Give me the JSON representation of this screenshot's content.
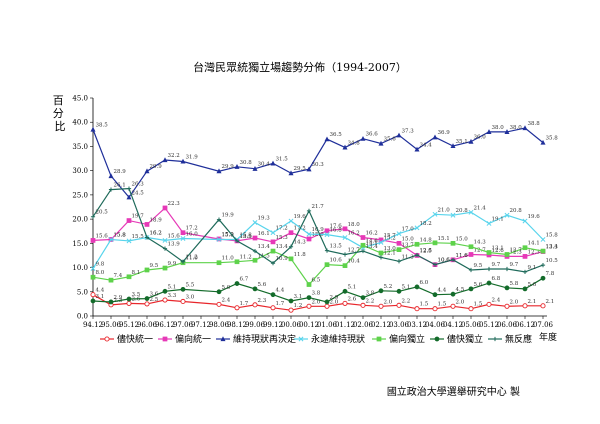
{
  "title": "台灣民眾統獨立場趨勢分佈（1994-2007）",
  "footer": "國立政治大學選舉研究中心 製",
  "chart_data": {
    "type": "line",
    "title": "台灣民眾統獨立場趨勢分佈（1994-2007）",
    "xlabel": "年度",
    "ylabel": "百分比",
    "ylim": [
      0,
      45
    ],
    "yticks": [
      "0.0",
      "5.0",
      "10.0",
      "15.0",
      "20.0",
      "25.0",
      "30.0",
      "35.0",
      "40.0",
      "45.0"
    ],
    "grid": false,
    "legend": "bottom",
    "x": [
      "94.12",
      "95.06",
      "95.12",
      "96.06",
      "96.12",
      "97.06",
      "97.12",
      "98.06",
      "98.12",
      "99.06",
      "99.12",
      "00.06",
      "00.12",
      "01.06",
      "01.12",
      "02.06",
      "02.12",
      "03.06",
      "03.12",
      "04.06",
      "04.12",
      "05.06",
      "05.12",
      "06.06",
      "06.12",
      "07.06"
    ],
    "series": [
      {
        "name": "儘快統一",
        "color": "#e8262b",
        "marker": "circle-open",
        "points": [
          [
            0,
            4.4
          ],
          [
            1,
            2.3
          ],
          [
            2,
            2.6
          ],
          [
            3,
            2.5
          ],
          [
            4,
            3.3
          ],
          [
            5,
            3.0
          ],
          [
            7,
            2.4
          ],
          [
            8,
            1.7
          ],
          [
            9,
            2.3
          ],
          [
            10,
            1.7
          ],
          [
            11,
            1.2
          ],
          [
            12,
            2.0
          ],
          [
            13,
            2.0
          ],
          [
            14,
            2.6
          ],
          [
            15,
            2.2
          ],
          [
            16,
            2.0
          ],
          [
            17,
            2.2
          ],
          [
            18,
            1.5
          ],
          [
            19,
            1.5
          ],
          [
            20,
            2.0
          ],
          [
            21,
            1.5
          ],
          [
            22,
            2.4
          ],
          [
            23,
            2.0
          ],
          [
            24,
            2.1
          ],
          [
            25,
            2.1
          ]
        ]
      },
      {
        "name": "偏向統一",
        "color": "#e639b7",
        "marker": "square",
        "points": [
          [
            0,
            15.6
          ],
          [
            1,
            15.8
          ],
          [
            2,
            19.7
          ],
          [
            3,
            18.9
          ],
          [
            4,
            22.3
          ],
          [
            5,
            17.2
          ],
          [
            7,
            15.9
          ],
          [
            8,
            15.5
          ],
          [
            9,
            16.1
          ],
          [
            10,
            15.3
          ],
          [
            11,
            17.2
          ],
          [
            12,
            15.9
          ],
          [
            13,
            17.6
          ],
          [
            14,
            18.0
          ],
          [
            15,
            16.2
          ],
          [
            16,
            15.7
          ],
          [
            17,
            15.0
          ],
          [
            18,
            12.5
          ],
          [
            19,
            10.6
          ],
          [
            20,
            11.6
          ],
          [
            21,
            12.7
          ],
          [
            22,
            12.6
          ],
          [
            23,
            12.3
          ],
          [
            24,
            12.3
          ],
          [
            25,
            13.3
          ]
        ]
      },
      {
        "name": "維持現狀再決定",
        "color": "#1f2f9a",
        "marker": "triangle",
        "points": [
          [
            0,
            38.5
          ],
          [
            1,
            28.9
          ],
          [
            2,
            24.5
          ],
          [
            3,
            29.9
          ],
          [
            4,
            32.2
          ],
          [
            5,
            31.9
          ],
          [
            7,
            29.9
          ],
          [
            8,
            30.8
          ],
          [
            9,
            30.4
          ],
          [
            10,
            31.5
          ],
          [
            11,
            29.5
          ],
          [
            12,
            30.3
          ],
          [
            13,
            36.5
          ],
          [
            14,
            34.8
          ],
          [
            15,
            36.6
          ],
          [
            16,
            35.6
          ],
          [
            17,
            37.3
          ],
          [
            18,
            34.4
          ],
          [
            19,
            36.9
          ],
          [
            20,
            35.1
          ],
          [
            21,
            36.0
          ],
          [
            22,
            38.0
          ],
          [
            23,
            38.0
          ],
          [
            24,
            38.8
          ],
          [
            25,
            35.8
          ]
        ]
      },
      {
        "name": "永遠維持現狀",
        "color": "#58d4ec",
        "marker": "x",
        "points": [
          [
            0,
            9.8
          ],
          [
            1,
            15.8
          ],
          [
            2,
            15.5
          ],
          [
            3,
            16.2
          ],
          [
            4,
            15.6
          ],
          [
            5,
            16.0
          ],
          [
            7,
            15.8
          ],
          [
            8,
            15.8
          ],
          [
            9,
            19.3
          ],
          [
            10,
            17.2
          ],
          [
            11,
            19.6
          ],
          [
            12,
            16.9
          ],
          [
            13,
            16.8
          ],
          [
            14,
            16.2
          ],
          [
            15,
            14.1
          ],
          [
            16,
            15.2
          ],
          [
            17,
            17.0
          ],
          [
            18,
            18.2
          ],
          [
            19,
            21.0
          ],
          [
            20,
            20.8
          ],
          [
            21,
            21.4
          ],
          [
            22,
            19.1
          ],
          [
            23,
            20.8
          ],
          [
            24,
            19.6
          ],
          [
            25,
            15.8
          ]
        ]
      },
      {
        "name": "偏向獨立",
        "color": "#5ed24b",
        "marker": "square",
        "points": [
          [
            0,
            8.0
          ],
          [
            1,
            7.4
          ],
          [
            2,
            8.1
          ],
          [
            3,
            9.5
          ],
          [
            4,
            9.9
          ],
          [
            5,
            11.0
          ],
          [
            7,
            11.0
          ],
          [
            8,
            11.2
          ],
          [
            9,
            11.5
          ],
          [
            10,
            13.4
          ],
          [
            11,
            11.8
          ],
          [
            12,
            6.5
          ],
          [
            13,
            10.6
          ],
          [
            14,
            10.4
          ],
          [
            15,
            14.6
          ],
          [
            16,
            13.0
          ],
          [
            17,
            13.7
          ],
          [
            18,
            14.8
          ],
          [
            19,
            15.1
          ],
          [
            20,
            15.0
          ],
          [
            21,
            14.3
          ],
          [
            22,
            13.1
          ],
          [
            23,
            12.7
          ],
          [
            24,
            14.1
          ],
          [
            25,
            13.4
          ]
        ]
      },
      {
        "name": "儘快獨立",
        "color": "#136b2a",
        "marker": "circle",
        "points": [
          [
            0,
            3.1
          ],
          [
            1,
            2.9
          ],
          [
            2,
            3.5
          ],
          [
            3,
            3.6
          ],
          [
            4,
            5.1
          ],
          [
            5,
            5.5
          ],
          [
            7,
            5.0
          ],
          [
            8,
            6.7
          ],
          [
            9,
            5.6
          ],
          [
            10,
            4.4
          ],
          [
            11,
            3.1
          ],
          [
            12,
            3.8
          ],
          [
            13,
            2.9
          ],
          [
            14,
            5.1
          ],
          [
            15,
            3.8
          ],
          [
            16,
            5.2
          ],
          [
            17,
            5.1
          ],
          [
            18,
            6.0
          ],
          [
            19,
            4.4
          ],
          [
            20,
            4.5
          ],
          [
            21,
            5.6
          ],
          [
            22,
            6.8
          ],
          [
            23,
            5.8
          ],
          [
            24,
            5.6
          ],
          [
            25,
            7.8
          ]
        ]
      },
      {
        "name": "無反應",
        "color": "#1e6a5a",
        "marker": "plus",
        "points": [
          [
            0,
            20.5
          ],
          [
            1,
            26.1
          ],
          [
            2,
            26.3
          ],
          [
            3,
            16.2
          ],
          [
            4,
            13.9
          ],
          [
            5,
            11.2
          ],
          [
            7,
            19.9
          ],
          [
            8,
            15.5
          ],
          [
            9,
            13.4
          ],
          [
            10,
            10.9
          ],
          [
            11,
            14.3
          ],
          [
            12,
            21.7
          ],
          [
            13,
            13.5
          ],
          [
            14,
            12.7
          ],
          [
            15,
            13.4
          ],
          [
            16,
            12.1
          ],
          [
            17,
            11.3
          ],
          [
            18,
            12.6
          ],
          [
            19,
            10.6
          ],
          [
            20,
            11.6
          ],
          [
            21,
            9.5
          ],
          [
            22,
            9.7
          ],
          [
            23,
            9.7
          ],
          [
            24,
            9.1
          ],
          [
            25,
            10.5
          ]
        ]
      }
    ]
  }
}
